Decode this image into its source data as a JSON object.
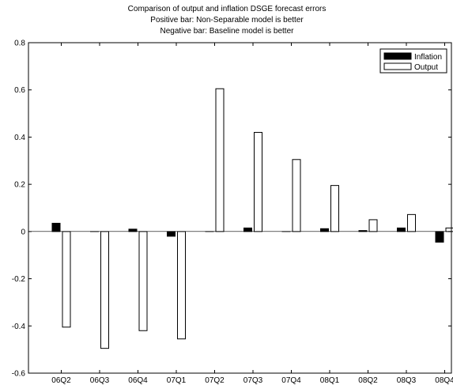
{
  "chart_data": {
    "type": "bar",
    "title_lines": [
      "Comparison of output and inflation DSGE forecast errors",
      "Positive bar: Non-Separable model is better",
      "Negative bar: Baseline model is better"
    ],
    "xlabel": "",
    "ylabel": "",
    "categories": [
      "06Q2",
      "06Q3",
      "06Q4",
      "07Q1",
      "07Q2",
      "07Q3",
      "07Q4",
      "08Q1",
      "08Q2",
      "08Q3",
      "08Q4"
    ],
    "series": [
      {
        "name": "Inflation",
        "color": "#000000",
        "fill": "solid",
        "values": [
          0.035,
          0.0,
          0.01,
          -0.02,
          0.0,
          0.015,
          0.0,
          0.012,
          0.004,
          0.015,
          -0.045
        ]
      },
      {
        "name": "Output",
        "color": "#ffffff",
        "fill": "hollow",
        "values": [
          -0.405,
          -0.495,
          -0.42,
          -0.455,
          0.605,
          0.42,
          0.305,
          0.195,
          0.05,
          0.072,
          0.015
        ]
      }
    ],
    "ylim": [
      -0.6,
      0.8
    ],
    "yticks": [
      -0.6,
      -0.4,
      -0.2,
      0,
      0.2,
      0.4,
      0.6,
      0.8
    ],
    "ytick_labels": [
      "-0.6",
      "-0.4",
      "-0.2",
      "0",
      "0.2",
      "0.4",
      "0.6",
      "0.8"
    ],
    "grid": false,
    "legend_position": "top-right"
  }
}
